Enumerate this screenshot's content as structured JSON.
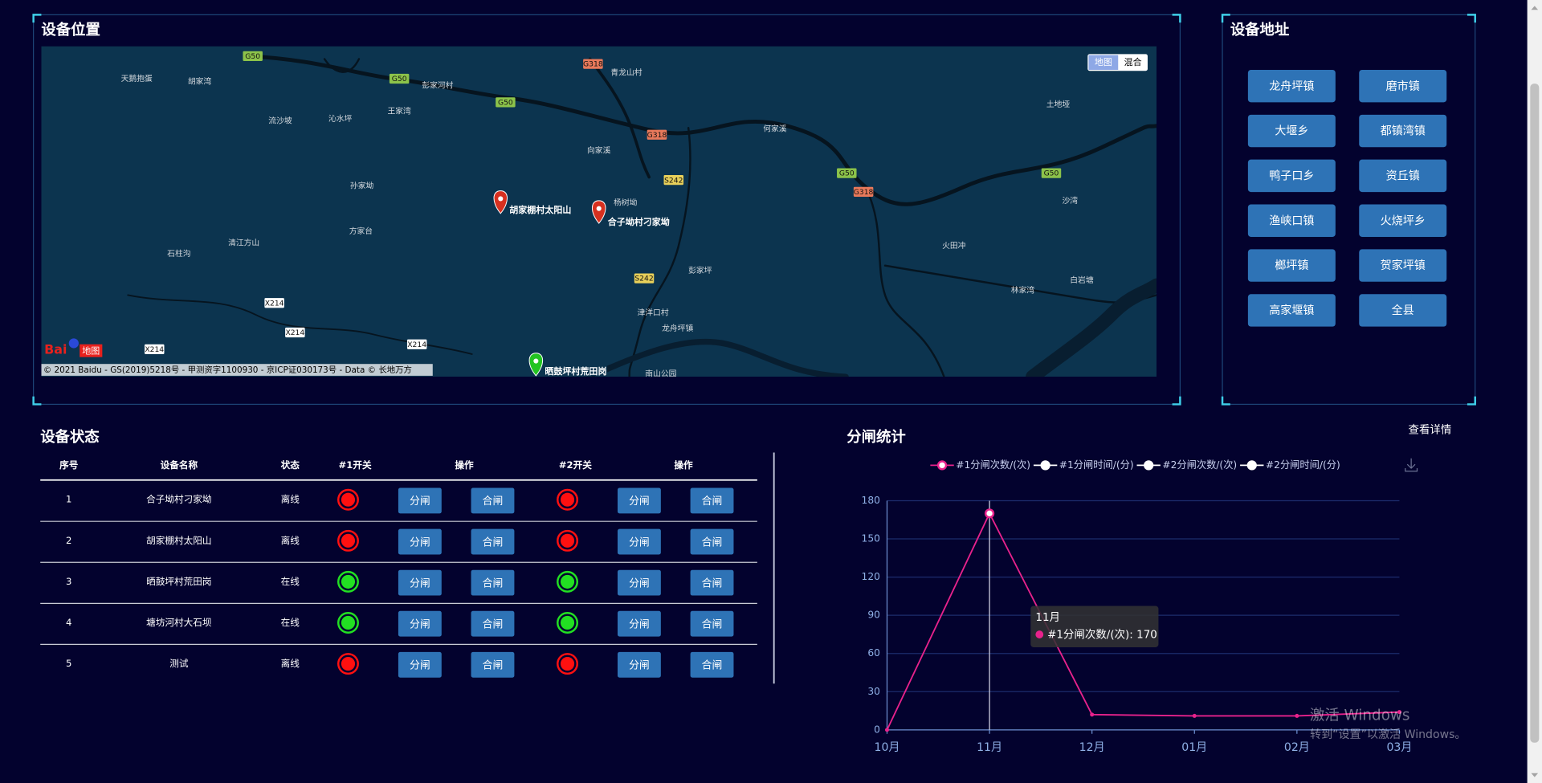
{
  "map_panel": {
    "title": "设备位置",
    "type_buttons": [
      "地图",
      "混合"
    ],
    "markers": [
      {
        "label": "胡家棚村太阳山",
        "color": "#d7301f"
      },
      {
        "label": "合子坳村刁家坳",
        "color": "#d7301f"
      },
      {
        "label": "晒鼓坪村荒田岗",
        "color": "#23c421"
      }
    ],
    "places": [
      "天鹅抱蛋",
      "胡家湾",
      "流沙坡",
      "沁水坪",
      "王家湾",
      "彭家河村",
      "青龙山村",
      "何家溪",
      "向家溪",
      "杨树坳",
      "孙家坳",
      "方家台",
      "清江方山",
      "石柱沟",
      "彭家坪",
      "龙舟坪镇",
      "火田冲",
      "沙湾",
      "林家湾",
      "土地垭",
      "津洋口村",
      "南山公园",
      "白岩塘"
    ],
    "road_shields": [
      "G50",
      "G50",
      "G50",
      "G50",
      "G50",
      "G318",
      "G318",
      "G318",
      "S242",
      "S242",
      "X214",
      "X214",
      "X214",
      "X214"
    ],
    "logo": [
      "Bai",
      "地图"
    ],
    "copyright": "© 2021 Baidu - GS(2019)5218号 - 甲测资字1100930 - 京ICP证030173号 - Data © 长地万方"
  },
  "address_panel": {
    "title": "设备地址",
    "buttons": [
      "龙舟坪镇",
      "磨市镇",
      "大堰乡",
      "都镇湾镇",
      "鸭子口乡",
      "资丘镇",
      "渔峡口镇",
      "火烧坪乡",
      "榔坪镇",
      "贺家坪镇",
      "高家堰镇",
      "全县"
    ]
  },
  "status_panel": {
    "title": "设备状态",
    "columns": [
      "序号",
      "设备名称",
      "状态",
      "#1开关",
      "操作",
      "#2开关",
      "操作"
    ],
    "buttons": [
      "分闸",
      "合闸"
    ],
    "rows": [
      {
        "no": 1,
        "name": "合子坳村刁家坳",
        "status": "离线",
        "switch1_color": "#ff1010",
        "switch2_color": "#ff1010"
      },
      {
        "no": 2,
        "name": "胡家棚村太阳山",
        "status": "离线",
        "switch1_color": "#ff1010",
        "switch2_color": "#ff1010"
      },
      {
        "no": 3,
        "name": "晒鼓坪村荒田岗",
        "status": "在线",
        "switch1_color": "#22e022",
        "switch2_color": "#22e022"
      },
      {
        "no": 4,
        "name": "塘坊河村大石坝",
        "status": "在线",
        "switch1_color": "#22e022",
        "switch2_color": "#22e022"
      },
      {
        "no": 5,
        "name": "测试",
        "status": "离线",
        "switch1_color": "#ff1010",
        "switch2_color": "#ff1010"
      }
    ]
  },
  "chart_data": {
    "type": "line",
    "title": "分闸统计",
    "link": "查看详情",
    "categories": [
      "10月",
      "11月",
      "12月",
      "01月",
      "02月",
      "03月"
    ],
    "series": [
      {
        "name": "#1分闸次数/(次)",
        "color": "#e8228c",
        "values": [
          0,
          170,
          12,
          11,
          11,
          14
        ]
      },
      {
        "name": "#1分闸时间/(分)",
        "color": "#ffffff"
      },
      {
        "name": "#2分闸次数/(次)",
        "color": "#ffffff"
      },
      {
        "name": "#2分闸时间/(分)",
        "color": "#ffffff"
      }
    ],
    "ylim": [
      0,
      180
    ],
    "yticks": [
      0,
      30,
      60,
      90,
      120,
      150,
      180
    ],
    "grid": true,
    "tooltip": {
      "title": "11月",
      "text": "#1分闸次数/(次): 170"
    }
  },
  "watermark": [
    "激活 Windows",
    "转到“设置”以激活 Windows。"
  ]
}
